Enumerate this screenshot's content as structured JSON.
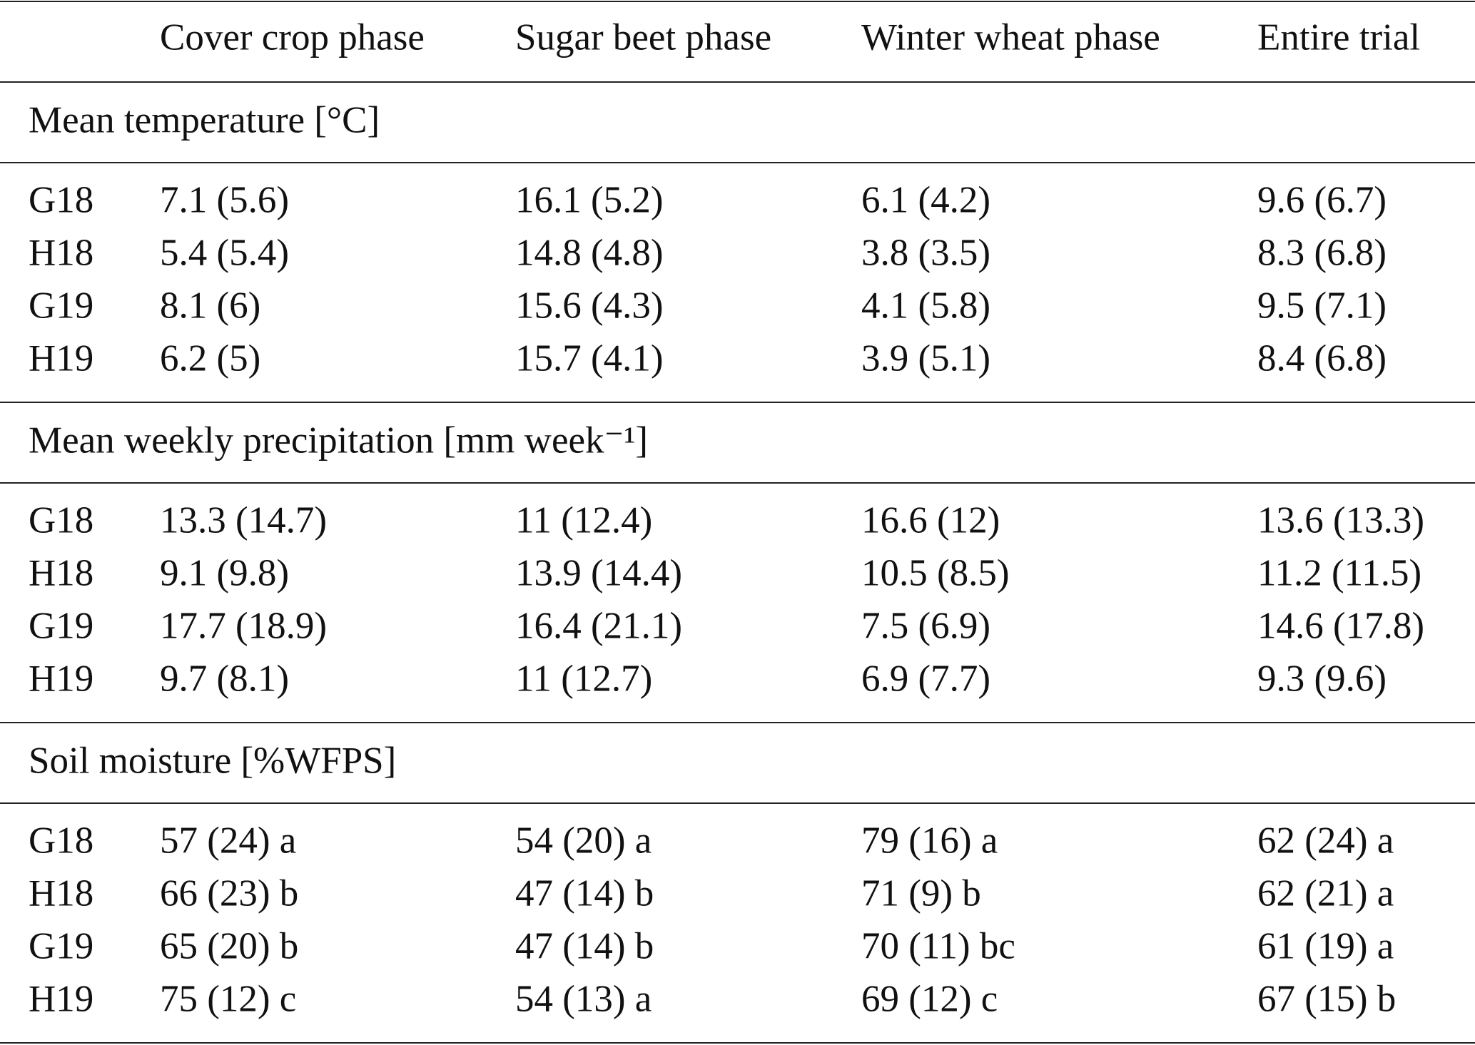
{
  "table": {
    "header": [
      "Cover crop phase",
      "Sugar beet phase",
      "Winter wheat phase",
      "Entire trial"
    ],
    "sections": [
      {
        "title": "Mean temperature [°C]",
        "rows": [
          {
            "label": "G18",
            "cells": [
              "7.1 (5.6)",
              "16.1 (5.2)",
              "6.1 (4.2)",
              "9.6 (6.7)"
            ]
          },
          {
            "label": "H18",
            "cells": [
              "5.4 (5.4)",
              "14.8 (4.8)",
              "3.8 (3.5)",
              "8.3 (6.8)"
            ]
          },
          {
            "label": "G19",
            "cells": [
              "8.1 (6)",
              "15.6 (4.3)",
              "4.1 (5.8)",
              "9.5 (7.1)"
            ]
          },
          {
            "label": "H19",
            "cells": [
              "6.2 (5)",
              "15.7 (4.1)",
              "3.9 (5.1)",
              "8.4 (6.8)"
            ]
          }
        ]
      },
      {
        "title": "Mean weekly precipitation [mm week⁻¹]",
        "rows": [
          {
            "label": "G18",
            "cells": [
              "13.3 (14.7)",
              "11 (12.4)",
              "16.6 (12)",
              "13.6 (13.3)"
            ]
          },
          {
            "label": "H18",
            "cells": [
              "9.1 (9.8)",
              "13.9 (14.4)",
              "10.5 (8.5)",
              "11.2 (11.5)"
            ]
          },
          {
            "label": "G19",
            "cells": [
              "17.7 (18.9)",
              "16.4 (21.1)",
              "7.5 (6.9)",
              "14.6 (17.8)"
            ]
          },
          {
            "label": "H19",
            "cells": [
              "9.7 (8.1)",
              "11 (12.7)",
              "6.9 (7.7)",
              "9.3 (9.6)"
            ]
          }
        ]
      },
      {
        "title": "Soil moisture [%WFPS]",
        "rows": [
          {
            "label": "G18",
            "cells": [
              "57 (24) a",
              "54 (20) a",
              "79 (16) a",
              "62 (24) a"
            ]
          },
          {
            "label": "H18",
            "cells": [
              "66 (23) b",
              "47 (14) b",
              "71 (9) b",
              "62 (21) a"
            ]
          },
          {
            "label": "G19",
            "cells": [
              "65 (20) b",
              "47 (14) b",
              "70 (11) bc",
              "61 (19) a"
            ]
          },
          {
            "label": "H19",
            "cells": [
              "75 (12) c",
              "54 (13) a",
              "69 (12) c",
              "67 (15) b"
            ]
          }
        ]
      }
    ]
  }
}
